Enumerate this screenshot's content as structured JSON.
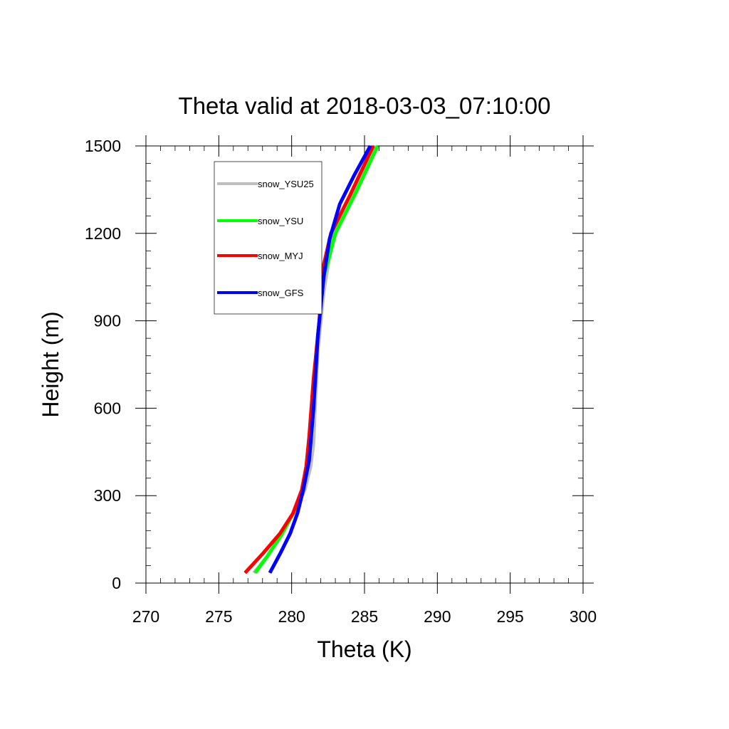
{
  "chart_data": {
    "type": "line",
    "title": "Theta valid at 2018-03-03_07:10:00",
    "xlabel": "Theta (K)",
    "ylabel": "Height (m)",
    "xlim": [
      270,
      300
    ],
    "ylim": [
      0,
      1500
    ],
    "x_ticks": [
      270,
      275,
      280,
      285,
      290,
      295,
      300
    ],
    "y_ticks": [
      0,
      300,
      600,
      900,
      1200,
      1500
    ],
    "x_tick_labels": [
      "270",
      "275",
      "280",
      "285",
      "290",
      "295",
      "300"
    ],
    "y_tick_labels": [
      "0",
      "300",
      "600",
      "900",
      "1200",
      "1500"
    ],
    "grid": false,
    "legend_position": "top-left",
    "series": [
      {
        "name": "snow_YSU25",
        "color": "#bebebe",
        "x": [
          277.4,
          278.3,
          279.3,
          280.2,
          280.9,
          281.3,
          281.5,
          281.6,
          281.8,
          282.2,
          282.8,
          283.6,
          284.8,
          285.8
        ],
        "y": [
          35,
          90,
          165,
          245,
          320,
          400,
          480,
          600,
          800,
          1000,
          1180,
          1290,
          1400,
          1500
        ]
      },
      {
        "name": "snow_YSU",
        "color": "#00ff00",
        "x": [
          277.5,
          278.3,
          279.3,
          280.1,
          280.8,
          281.1,
          281.3,
          281.5,
          281.7,
          282.2,
          283.0,
          284.5,
          285.9
        ],
        "y": [
          35,
          90,
          165,
          240,
          320,
          400,
          480,
          600,
          800,
          1050,
          1200,
          1350,
          1500
        ]
      },
      {
        "name": "snow_MYJ",
        "color": "#ff0000",
        "x": [
          276.8,
          278.0,
          279.2,
          280.1,
          280.7,
          281.0,
          281.2,
          281.5,
          281.9,
          282.1,
          282.7,
          284.0,
          285.6
        ],
        "y": [
          35,
          100,
          170,
          240,
          320,
          400,
          500,
          700,
          900,
          1070,
          1200,
          1330,
          1500
        ]
      },
      {
        "name": "snow_GFS",
        "color": "#0000ff",
        "x": [
          278.5,
          279.2,
          279.9,
          280.4,
          280.8,
          281.2,
          281.5,
          281.8,
          282.2,
          282.6,
          283.3,
          284.3,
          285.4
        ],
        "y": [
          35,
          100,
          170,
          240,
          320,
          420,
          600,
          850,
          1050,
          1180,
          1300,
          1400,
          1500
        ]
      }
    ]
  }
}
